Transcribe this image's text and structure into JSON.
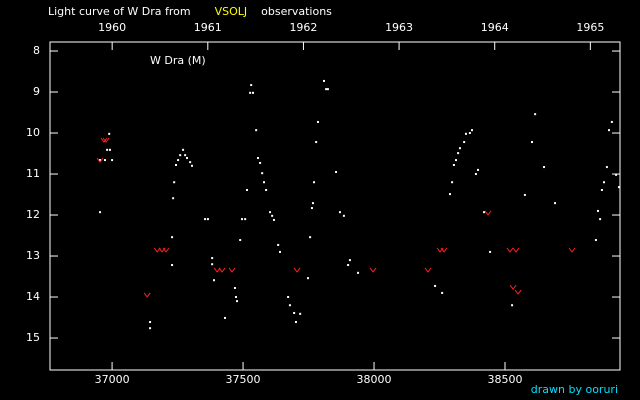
{
  "chart_data": {
    "type": "scatter",
    "title": "Light curve of W Dra from",
    "title_source": "VSOLJ",
    "title_suffix": "observations",
    "annotation": "W Dra (M)",
    "credit": "drawn by ooruri",
    "xlim": [
      36763,
      38939
    ],
    "xticks": [
      37000,
      37500,
      38000,
      38500
    ],
    "x2lim": [
      1959.35,
      1965.31
    ],
    "x2ticks": [
      1960,
      1961,
      1962,
      1963,
      1964,
      1965
    ],
    "ylim": [
      15.78,
      7.78
    ],
    "yticks": [
      8,
      9,
      10,
      11,
      12,
      13,
      14,
      15
    ],
    "series": [
      {
        "color": "#ffffff",
        "marker": "dot",
        "x": [
          36954,
          36973,
          36954,
          36981,
          36989,
          36992,
          37000,
          37145,
          37145,
          37229,
          37233,
          37237,
          37244,
          37252,
          37260,
          37271,
          37279,
          37286,
          37298,
          37305,
          37229,
          37355,
          37366,
          37382,
          37382,
          37389,
          37431,
          37469,
          37473,
          37477,
          37489,
          37496,
          37508,
          37515,
          37527,
          37538,
          37531,
          37550,
          37557,
          37565,
          37573,
          37580,
          37588,
          37603,
          37611,
          37618,
          37634,
          37641,
          37672,
          37679,
          37695,
          37702,
          37718,
          37748,
          37756,
          37763,
          37767,
          37771,
          37779,
          37786,
          37809,
          37817,
          37824,
          37855,
          37870,
          37885,
          37901,
          37908,
          37939,
          38233,
          38260,
          38290,
          38298,
          38305,
          38313,
          38321,
          38328,
          38344,
          38351,
          38366,
          38374,
          38389,
          38397,
          38420,
          38443,
          38527,
          38576,
          38603,
          38615,
          38649,
          38691,
          38847,
          38855,
          38863,
          38870,
          38878,
          38889,
          38897,
          38908,
          38924,
          38935
        ],
        "values": [
          10.66,
          10.66,
          11.93,
          10.41,
          10.02,
          10.41,
          10.66,
          14.61,
          14.76,
          12.54,
          11.59,
          11.2,
          10.78,
          10.66,
          10.54,
          10.41,
          10.54,
          10.61,
          10.71,
          10.8,
          13.22,
          12.1,
          12.1,
          13.05,
          13.2,
          13.59,
          14.51,
          13.78,
          14.0,
          14.1,
          12.61,
          12.1,
          12.1,
          11.39,
          9.02,
          9.02,
          8.83,
          9.93,
          10.61,
          10.73,
          10.98,
          11.2,
          11.39,
          11.93,
          12.02,
          12.12,
          12.73,
          12.9,
          14.0,
          14.2,
          14.39,
          14.61,
          14.41,
          13.54,
          12.54,
          11.83,
          11.71,
          11.2,
          10.22,
          9.73,
          8.73,
          8.93,
          8.93,
          10.95,
          11.93,
          12.02,
          13.22,
          13.1,
          13.41,
          13.73,
          13.9,
          11.49,
          11.2,
          10.78,
          10.66,
          10.49,
          10.37,
          10.22,
          10.02,
          10.0,
          9.93,
          11.0,
          10.9,
          11.93,
          12.9,
          14.2,
          11.51,
          10.22,
          9.54,
          10.83,
          11.71,
          12.61,
          11.9,
          12.1,
          11.39,
          11.2,
          10.83,
          9.93,
          9.73,
          11.02,
          11.32
        ]
      },
      {
        "color": "#ff2020",
        "marker": "vee",
        "x": [
          36954,
          36969,
          36977,
          37134,
          37172,
          37191,
          37206,
          37401,
          37420,
          37458,
          37706,
          37996,
          38206,
          38252,
          38267,
          38435,
          38519,
          38542,
          38531,
          38550,
          38756
        ],
        "values": [
          10.66,
          10.17,
          10.17,
          13.95,
          12.85,
          12.85,
          12.85,
          13.34,
          13.34,
          13.34,
          13.34,
          13.34,
          13.34,
          12.85,
          12.85,
          11.95,
          12.85,
          12.85,
          13.76,
          13.88,
          12.85
        ]
      }
    ]
  }
}
